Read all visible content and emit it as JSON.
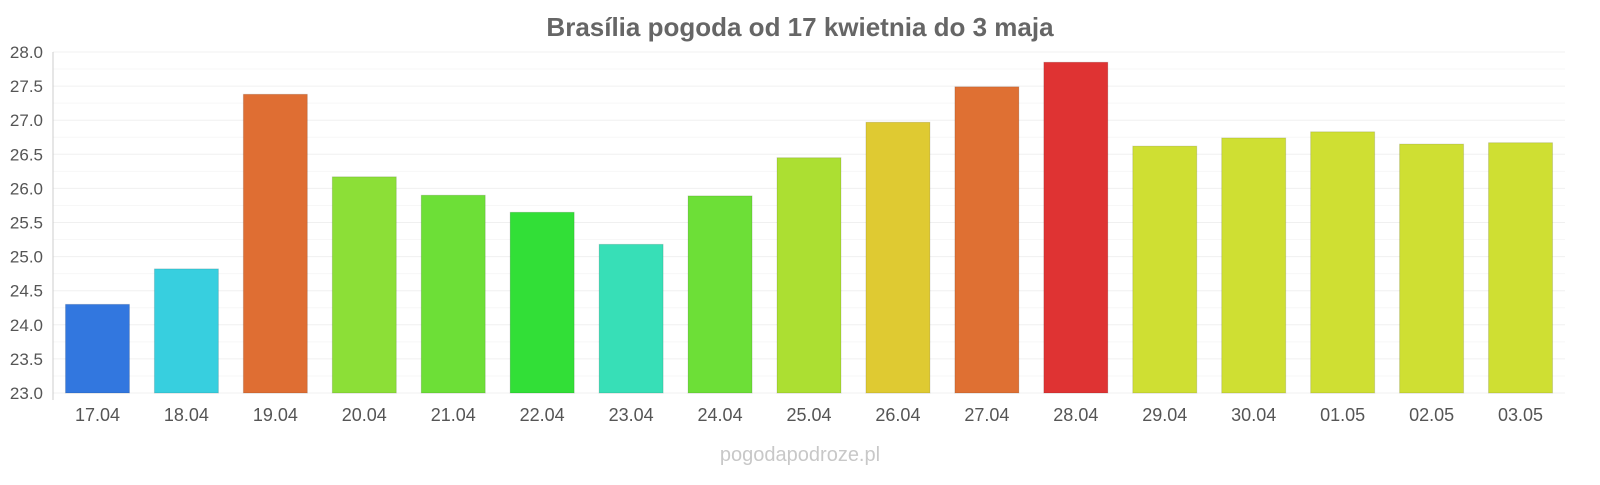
{
  "chart_data": {
    "type": "bar",
    "title": "Brasília pogoda od 17 kwietnia do 3 maja",
    "xlabel": "",
    "ylabel": "",
    "ylim": [
      23.0,
      28.0
    ],
    "yticks": [
      "23.0",
      "23.5",
      "24.0",
      "24.5",
      "25.0",
      "25.5",
      "26.0",
      "26.5",
      "27.0",
      "27.5",
      "28.0"
    ],
    "grid": true,
    "categories": [
      "17.04",
      "18.04",
      "19.04",
      "20.04",
      "21.04",
      "22.04",
      "23.04",
      "24.04",
      "25.04",
      "26.04",
      "27.04",
      "28.04",
      "29.04",
      "30.04",
      "01.05",
      "02.05",
      "03.05"
    ],
    "values": [
      24.3,
      24.82,
      27.38,
      26.17,
      25.9,
      25.65,
      25.18,
      25.89,
      26.45,
      26.97,
      27.49,
      27.85,
      26.62,
      26.74,
      26.83,
      26.65,
      26.67
    ],
    "colors": [
      "#3277df",
      "#37cfdf",
      "#df6e33",
      "#8cdf37",
      "#6ddf37",
      "#32df37",
      "#37dfb7",
      "#6ddf37",
      "#acdf32",
      "#dfca32",
      "#df7033",
      "#df3333",
      "#cfdf33",
      "#cfdf33",
      "#cfdf33",
      "#cfdf33",
      "#cfdf33"
    ]
  },
  "watermark": "pogodapodroze.pl"
}
